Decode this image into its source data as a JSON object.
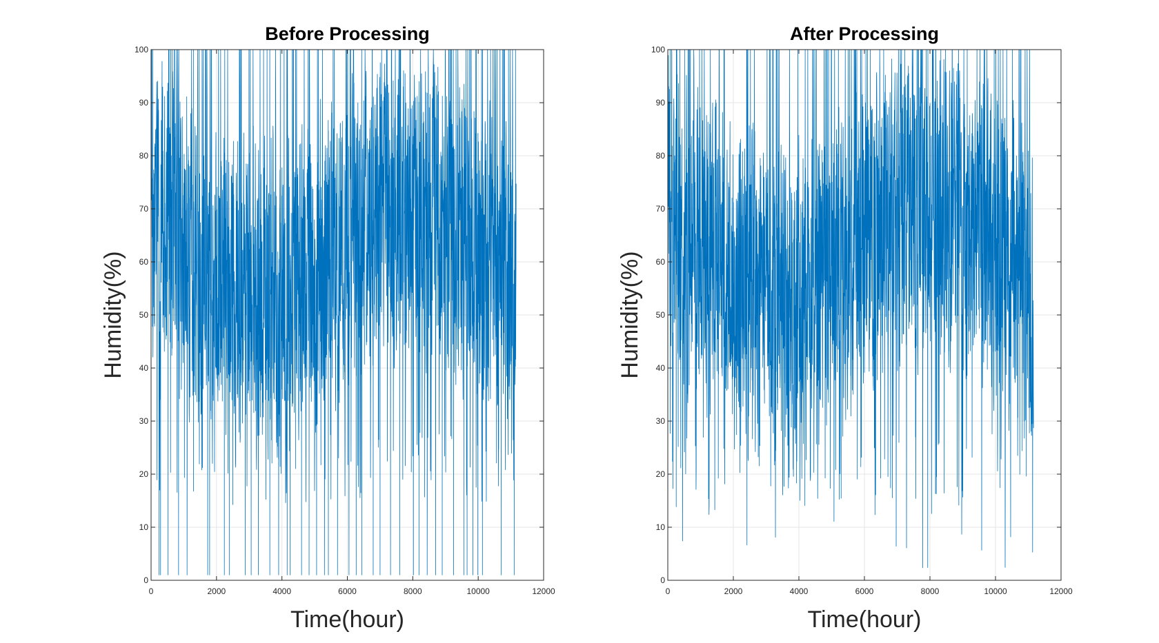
{
  "chart_data": [
    {
      "type": "line",
      "title": "Before Processing",
      "xlabel": "Time(hour)",
      "ylabel": "Humidity(%)",
      "xlim": [
        0,
        12000
      ],
      "ylim": [
        0,
        100
      ],
      "xticks": [
        0,
        2000,
        4000,
        6000,
        8000,
        10000,
        12000
      ],
      "yticks": [
        0,
        10,
        20,
        30,
        40,
        50,
        60,
        70,
        80,
        90,
        100
      ],
      "grid": true,
      "series_color": "#0072BD",
      "series": [
        {
          "x_range": [
            1,
            11160
          ],
          "mean": 62,
          "typical_range": [
            35,
            90
          ],
          "min": 1,
          "max": 100,
          "dropouts_to_min": [
            240,
            290,
            520,
            840,
            1100,
            1730,
            1790,
            2240,
            2390,
            2880,
            3060,
            3280,
            3630,
            3900,
            4160,
            4250,
            4600,
            4830,
            5060,
            5300,
            5420,
            5700,
            6050,
            6270,
            6440,
            6790,
            7000,
            7320,
            7600,
            8020,
            8190,
            8440,
            8700,
            8900,
            9250,
            9560,
            9660,
            9840,
            9990,
            10130,
            10700,
            11100
          ]
        }
      ]
    },
    {
      "type": "line",
      "title": "After Processing",
      "xlabel": "Time(hour)",
      "ylabel": "Humidity(%)",
      "xlim": [
        0,
        12000
      ],
      "ylim": [
        0,
        100
      ],
      "xticks": [
        0,
        2000,
        4000,
        6000,
        8000,
        10000,
        12000
      ],
      "yticks": [
        0,
        10,
        20,
        30,
        40,
        50,
        60,
        70,
        80,
        90,
        100
      ],
      "grid": true,
      "series_color": "#0072BD",
      "series": [
        {
          "x_range": [
            1,
            11160
          ],
          "mean": 62,
          "typical_range": [
            35,
            90
          ],
          "min": 2,
          "max": 100,
          "dropouts_to_min": []
        }
      ]
    }
  ]
}
